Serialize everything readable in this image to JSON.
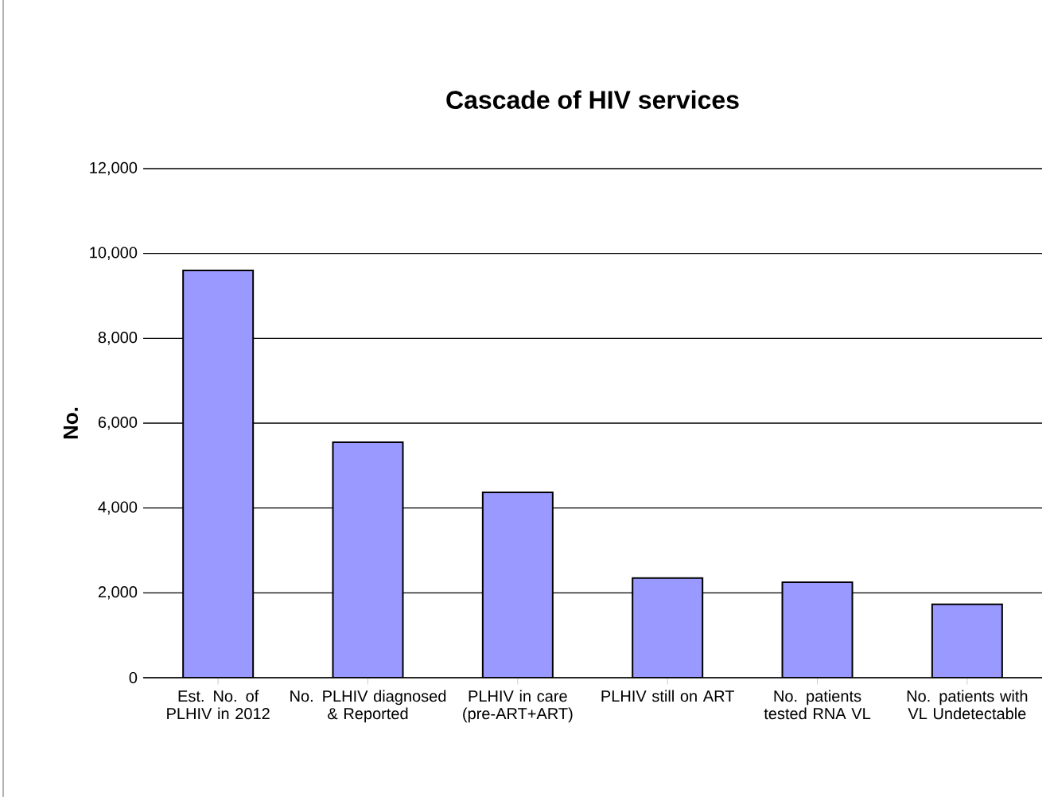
{
  "chart_data": {
    "type": "bar",
    "title": "Cascade of HIV services",
    "ylabel": "No.",
    "categories": [
      "Est. No. of PLHIV in 2012",
      "No. PLHIV diagnosed & Reported",
      "PLHIV in care (pre-ART+ART)",
      "PLHIV still on ART",
      "No. patients tested RNA VL",
      "No. patients with VL Undetectable"
    ],
    "values": [
      9600,
      5550,
      4370,
      2350,
      2250,
      1730
    ],
    "color": "#9999ff",
    "ylim": [
      0,
      12000
    ],
    "yticks": [
      {
        "value": 0,
        "label": "0"
      },
      {
        "value": 2000,
        "label": "2,000"
      },
      {
        "value": 4000,
        "label": "4,000"
      },
      {
        "value": 6000,
        "label": "6,000"
      },
      {
        "value": 8000,
        "label": "8,000"
      },
      {
        "value": 10000,
        "label": "10,000"
      },
      {
        "value": 12000,
        "label": "12,000"
      }
    ],
    "grid": "y"
  }
}
